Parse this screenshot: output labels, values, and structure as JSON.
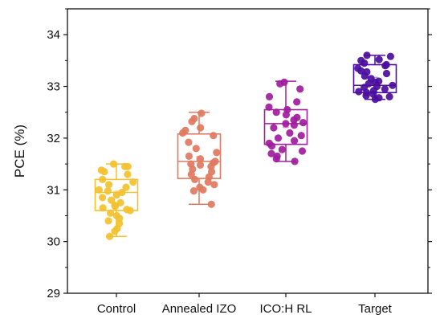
{
  "chart_data": {
    "type": "box",
    "title": "",
    "xlabel": "",
    "ylabel": "PCE (%)",
    "ylim": [
      29,
      34.5
    ],
    "yticks": [
      "29",
      "30",
      "31",
      "32",
      "33",
      "34"
    ],
    "categories": [
      "Control",
      "Annealed IZO",
      "ICO:H RL",
      "Target"
    ],
    "grid": false,
    "colors": [
      "#F2C12E",
      "#E07A5F",
      "#A11C9E",
      "#4B0D9E"
    ],
    "boxes": [
      {
        "category": "Control",
        "whisker_low": 30.1,
        "q1": 30.6,
        "median": 30.95,
        "mean": 30.93,
        "q3": 31.2,
        "whisker_high": 31.5
      },
      {
        "category": "Annealed IZO",
        "whisker_low": 30.72,
        "q1": 31.22,
        "median": 31.55,
        "mean": 31.6,
        "q3": 32.08,
        "whisker_high": 32.5
      },
      {
        "category": "ICO:H RL",
        "whisker_low": 31.55,
        "q1": 31.88,
        "median": 32.28,
        "mean": 32.25,
        "q3": 32.55,
        "whisker_high": 33.1
      },
      {
        "category": "Target",
        "whisker_low": 32.75,
        "q1": 32.88,
        "median": 33.02,
        "mean": 33.13,
        "q3": 33.42,
        "whisker_high": 33.6
      }
    ],
    "points": [
      {
        "category": "Control",
        "values": [
          31.45,
          31.38,
          31.5,
          31.45,
          31.35,
          31.3,
          31.2,
          31.15,
          31.1,
          31.05,
          31.0,
          30.98,
          30.95,
          30.9,
          30.85,
          30.8,
          30.75,
          30.7,
          30.68,
          30.65,
          30.62,
          30.6,
          30.55,
          30.5,
          30.45,
          30.4,
          30.35,
          30.25,
          30.2,
          30.1
        ]
      },
      {
        "category": "Annealed IZO",
        "values": [
          32.48,
          32.38,
          32.32,
          32.2,
          32.15,
          32.1,
          32.05,
          31.92,
          31.8,
          31.72,
          31.65,
          31.6,
          31.55,
          31.52,
          31.5,
          31.48,
          31.45,
          31.4,
          31.35,
          31.3,
          31.25,
          31.2,
          31.15,
          31.1,
          31.05,
          31.0,
          30.98,
          30.72
        ]
      },
      {
        "category": "ICO:H RL",
        "values": [
          33.08,
          33.05,
          32.95,
          32.8,
          32.7,
          32.6,
          32.55,
          32.5,
          32.45,
          32.4,
          32.35,
          32.3,
          32.28,
          32.25,
          32.2,
          32.1,
          32.05,
          32.0,
          31.95,
          31.9,
          31.85,
          31.78,
          31.75,
          31.7,
          31.65,
          31.6,
          31.55
        ]
      },
      {
        "category": "Target",
        "values": [
          33.6,
          33.58,
          33.52,
          33.5,
          33.45,
          33.42,
          33.4,
          33.35,
          33.3,
          33.28,
          33.25,
          33.2,
          33.15,
          33.1,
          33.08,
          33.05,
          33.02,
          33.0,
          32.98,
          32.95,
          32.92,
          32.9,
          32.88,
          32.85,
          32.82,
          32.8,
          32.78,
          32.75
        ]
      }
    ]
  }
}
